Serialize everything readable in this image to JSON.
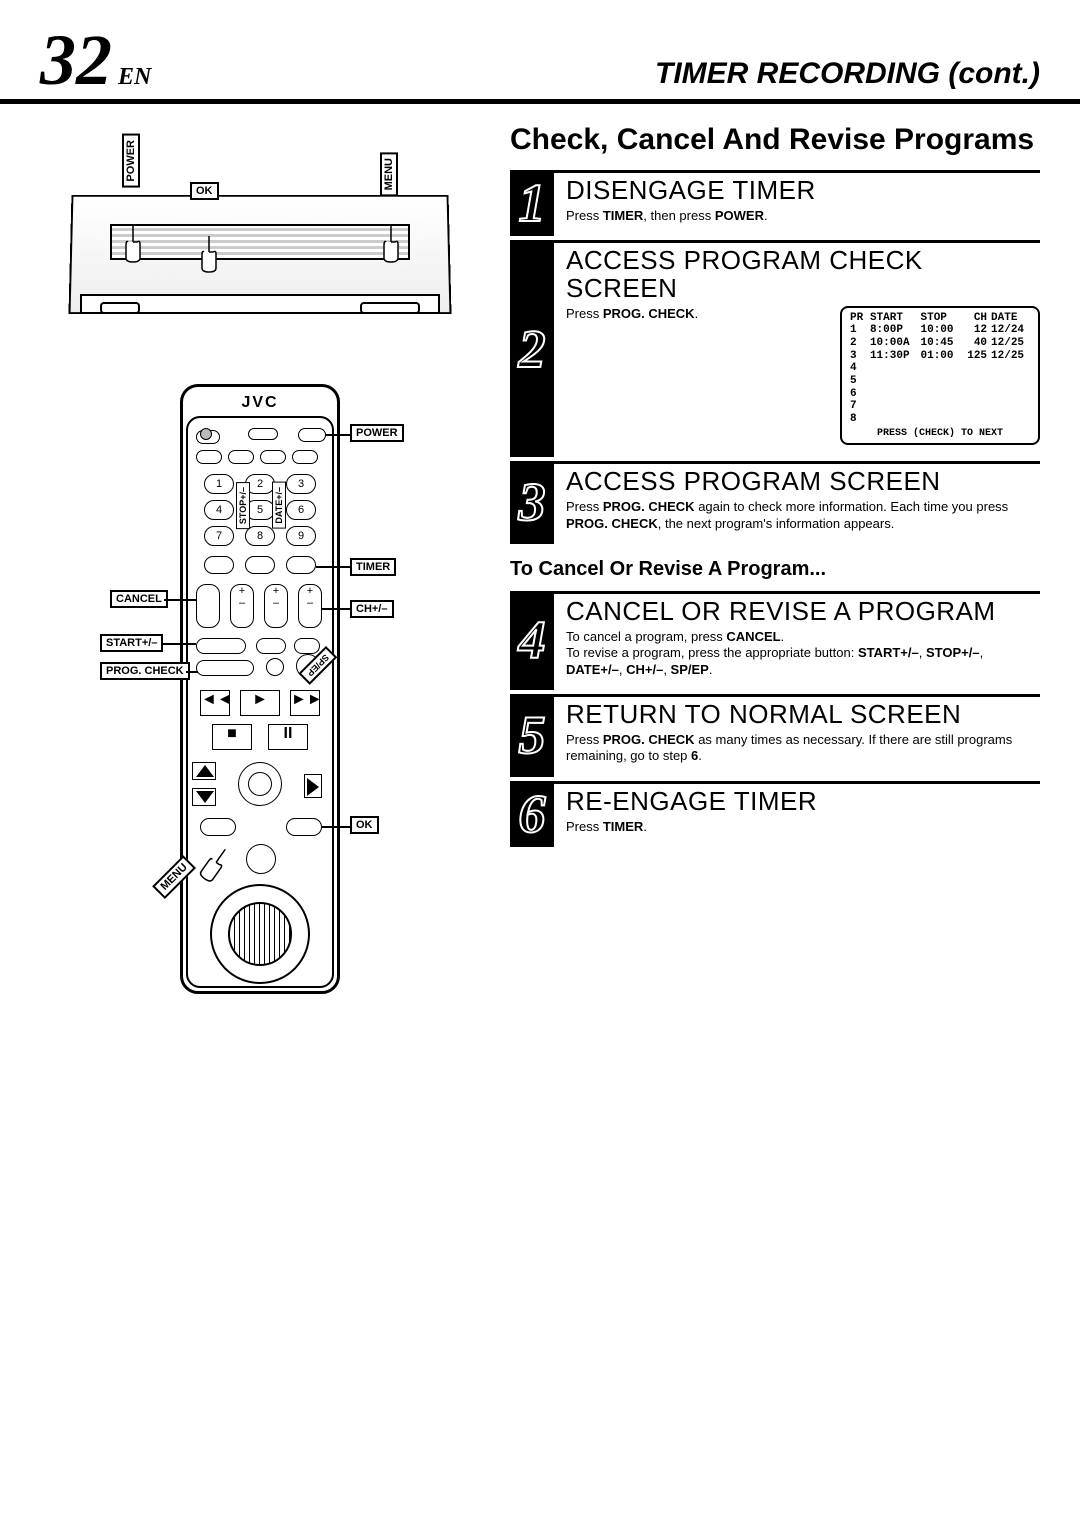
{
  "header": {
    "page_number": "32",
    "language": "EN",
    "title": "TIMER RECORDING (cont.)"
  },
  "section_title": "Check, Cancel And Revise Programs",
  "subheading": "To Cancel Or Revise A Program...",
  "vcr_labels": {
    "power": "POWER",
    "ok": "OK",
    "menu": "MENU"
  },
  "remote": {
    "brand": "JVC",
    "labels": {
      "power": "POWER",
      "timer": "TIMER",
      "cancel": "CANCEL",
      "chpm": "CH+/–",
      "startpm": "START+/–",
      "prog_check": "PROG. CHECK",
      "ok": "OK",
      "menu": "MENU",
      "stoppm": "STOP+/–",
      "datepm": "DATE+/–",
      "sp_ep": "SP/EP"
    },
    "keypad": [
      [
        "1",
        "2",
        "3"
      ],
      [
        "4",
        "5",
        "6"
      ],
      [
        "7",
        "8",
        "9"
      ]
    ]
  },
  "steps": [
    {
      "num": "1",
      "heading": "DISENGAGE TIMER",
      "desc_parts": [
        "Press ",
        "TIMER",
        ", then press ",
        "POWER",
        "."
      ]
    },
    {
      "num": "2",
      "heading": "ACCESS PROGRAM CHECK SCREEN",
      "desc_parts": [
        "Press ",
        "PROG. CHECK",
        "."
      ],
      "has_table": true
    },
    {
      "num": "3",
      "heading": "ACCESS PROGRAM SCREEN",
      "desc_parts": [
        "Press ",
        "PROG. CHECK",
        " again to check more information. Each time you press ",
        "PROG. CHECK",
        ", the next program's information appears."
      ]
    },
    {
      "num": "4",
      "heading": "CANCEL OR REVISE A PROGRAM",
      "desc_parts": [
        "To cancel a program, press ",
        "CANCEL",
        ".\nTo revise a program, press the appropriate button: ",
        "START+/–",
        ", ",
        "STOP+/–",
        ", ",
        "DATE+/–",
        ", ",
        "CH+/–",
        ", ",
        "SP/EP",
        "."
      ]
    },
    {
      "num": "5",
      "heading": "RETURN TO NORMAL SCREEN",
      "desc_parts": [
        "Press ",
        "PROG. CHECK",
        " as many times as necessary. If there are still programs remaining, go to step ",
        "6",
        "."
      ]
    },
    {
      "num": "6",
      "heading": "RE-ENGAGE TIMER",
      "desc_parts": [
        "Press ",
        "TIMER",
        "."
      ]
    }
  ],
  "prog_table": {
    "columns": [
      "PR",
      "START",
      "STOP",
      "CH",
      "DATE"
    ],
    "rows": [
      [
        "1",
        "8:00P",
        "10:00",
        "12",
        "12/24"
      ],
      [
        "2",
        "10:00A",
        "10:45",
        "40",
        "12/25"
      ],
      [
        "3",
        "11:30P",
        "01:00",
        "125",
        "12/25"
      ],
      [
        "4",
        "",
        "",
        "",
        ""
      ],
      [
        "5",
        "",
        "",
        "",
        ""
      ],
      [
        "6",
        "",
        "",
        "",
        ""
      ],
      [
        "7",
        "",
        "",
        "",
        ""
      ],
      [
        "8",
        "",
        "",
        "",
        ""
      ]
    ],
    "footer": "PRESS (CHECK) TO NEXT"
  },
  "colors": {
    "ink": "#000000",
    "paper": "#ffffff",
    "page_bg": "#f5f5f5"
  }
}
